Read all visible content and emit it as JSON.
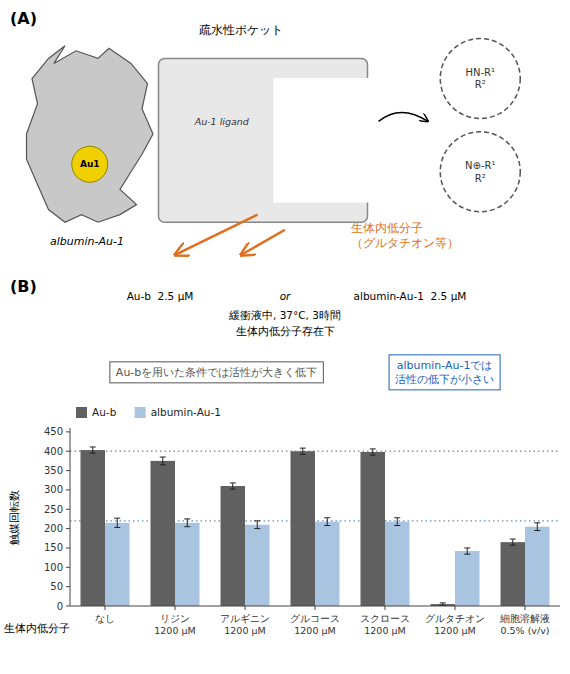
{
  "chart_data": {
    "type": "bar",
    "title": "(B)",
    "categories": [
      "なし",
      "リジン\n1200 μM",
      "アルギニン\n1200 μM",
      "グルコース\n1200 μM",
      "スクロース\n1200 μM",
      "グルタチオン\n1200 μM",
      "細胞溶解液\n0.5% (v/v)"
    ],
    "xlabel": "生体内低分子",
    "ylabel": "触媒回転数",
    "series": [
      {
        "name": "Au-b",
        "color": "#606060",
        "values": [
          403,
          375,
          310,
          400,
          398,
          5,
          165
        ],
        "errors": [
          8,
          10,
          8,
          8,
          8,
          3,
          8
        ]
      },
      {
        "name": "albumin-Au-1",
        "color": "#a8c4e0",
        "values": [
          215,
          215,
          210,
          218,
          218,
          142,
          205
        ],
        "errors": [
          12,
          10,
          10,
          10,
          10,
          8,
          10
        ]
      }
    ],
    "ylim": [
      0,
      460
    ],
    "yticks": [
      0,
      50,
      100,
      150,
      200,
      250,
      300,
      350,
      400,
      450
    ],
    "grid": false,
    "legend": "upper left",
    "ref_lines": [
      {
        "value": 400,
        "color": "gray",
        "line_style": "dotted"
      },
      {
        "value": 220,
        "color": "#6090c0",
        "line_style": "dotted"
      }
    ],
    "annotations": [
      {
        "text": "(A)"
      },
      {
        "text": "疏水性ポケット"
      },
      {
        "text": "Au1"
      },
      {
        "text": "albumin-Au-1"
      },
      {
        "text": "Au-1 ligand"
      },
      {
        "text": "HN-R¹\nR²"
      },
      {
        "text": "N⊕-R¹\nR²"
      },
      {
        "text": "生体内低分子\n（グルタチオン等）",
        "color": "#e07020"
      },
      {
        "text": "Au-b  2.5 μM"
      },
      {
        "text": "or"
      },
      {
        "text": "albumin-Au-1  2.5 μM"
      },
      {
        "text": "緩衝液中, 37°C, 3時間"
      },
      {
        "text": "生体内低分子存在下"
      },
      {
        "text": "Au-bを用いた条件では活性が大きく低下",
        "color": "#555555"
      },
      {
        "text": "albumin-Au-1では\n活性の低下が小さい",
        "color": "#2060c0"
      }
    ]
  }
}
